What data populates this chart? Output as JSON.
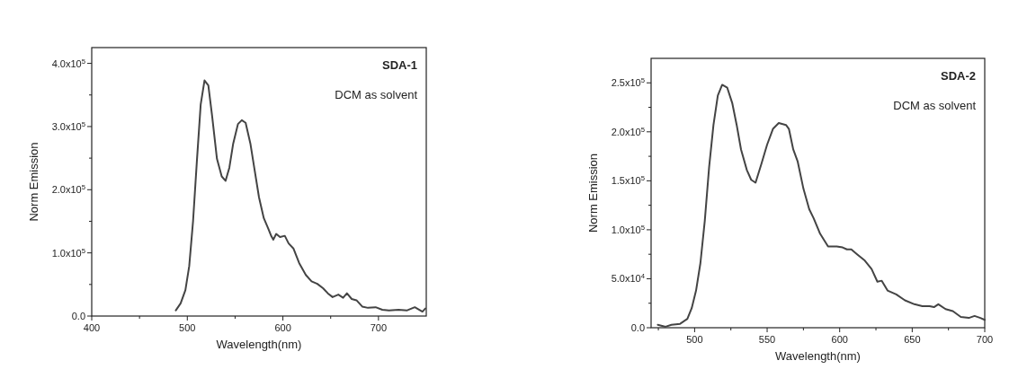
{
  "chart_data": [
    {
      "type": "line",
      "xlabel": "Wavelength(nm)",
      "ylabel": "Norm Emission",
      "annotations": [
        "SDA-1",
        "DCM as solvent"
      ],
      "xlim": [
        400,
        750
      ],
      "ylim": [
        0,
        425000
      ],
      "xticks": [
        400,
        {
          "value": 450,
          "label": null
        },
        500,
        {
          "value": 550,
          "label": null
        },
        600,
        {
          "value": 650,
          "label": null
        },
        700
      ],
      "yticks": [
        {
          "value": 0,
          "label": "0.0"
        },
        {
          "value": 50000,
          "label": null
        },
        {
          "value": 100000,
          "label": "1.0x10$^{5}$"
        },
        {
          "value": 150000,
          "label": null
        },
        {
          "value": 200000,
          "label": "2.0x10$^{5}$"
        },
        {
          "value": 250000,
          "label": null
        },
        {
          "value": 300000,
          "label": "3.0x10$^{5}$"
        },
        {
          "value": 350000,
          "label": null
        },
        {
          "value": 400000,
          "label": "4.0x10$^{5}$"
        }
      ],
      "series": [
        {
          "color": "#444444",
          "x": [
            488,
            493,
            498,
            502,
            506,
            510,
            514,
            518,
            522,
            526,
            531,
            536,
            540,
            544,
            548,
            553,
            557,
            561,
            566,
            570,
            575,
            580,
            584,
            588,
            590,
            593,
            597,
            602,
            606,
            611,
            617,
            624,
            630,
            636,
            642,
            647,
            652,
            658,
            663,
            667,
            672,
            677,
            683,
            689,
            697,
            704,
            711,
            721,
            730,
            738,
            746,
            749
          ],
          "values": [
            9000,
            20000,
            41000,
            79000,
            150000,
            245000,
            335000,
            373000,
            365000,
            316000,
            249000,
            221000,
            214000,
            235000,
            273000,
            304000,
            310000,
            306000,
            273000,
            235000,
            188000,
            155000,
            141000,
            126000,
            121000,
            130000,
            125000,
            127000,
            115000,
            107000,
            84000,
            65000,
            55000,
            51000,
            44000,
            36000,
            30000,
            34000,
            29000,
            36000,
            27000,
            25000,
            15000,
            13000,
            14000,
            10000,
            9000,
            10000,
            9000,
            14000,
            7000,
            12000
          ]
        }
      ]
    },
    {
      "type": "line",
      "xlabel": "Wavelength(nm)",
      "ylabel": "Norm Emission",
      "annotations": [
        "SDA-2",
        "DCM as solvent"
      ],
      "xlim": [
        470,
        700
      ],
      "ylim": [
        0,
        275000
      ],
      "xticks": [
        {
          "value": 475,
          "label": null
        },
        500,
        {
          "value": 525,
          "label": null
        },
        550,
        {
          "value": 575,
          "label": null
        },
        600,
        {
          "value": 625,
          "label": null
        },
        650,
        {
          "value": 675,
          "label": null
        },
        700
      ],
      "yticks": [
        {
          "value": 0,
          "label": "0.0"
        },
        {
          "value": 25000,
          "label": null
        },
        {
          "value": 50000,
          "label": "5.0x10$^{4}$"
        },
        {
          "value": 75000,
          "label": null
        },
        {
          "value": 100000,
          "label": "1.0x10$^{5}$"
        },
        {
          "value": 125000,
          "label": null
        },
        {
          "value": 150000,
          "label": "1.5x10$^{5}$"
        },
        {
          "value": 175000,
          "label": null
        },
        {
          "value": 200000,
          "label": "2.0x10$^{5}$"
        },
        {
          "value": 225000,
          "label": null
        },
        {
          "value": 250000,
          "label": "2.5x10$^{5}$"
        }
      ],
      "series": [
        {
          "color": "#444444",
          "x": [
            474.6,
            480,
            484,
            490,
            495,
            498,
            501,
            504,
            507,
            510,
            513,
            516,
            519,
            522.5,
            526,
            529,
            532,
            536,
            539,
            542,
            546,
            550,
            554,
            558,
            563,
            565,
            568,
            571,
            575,
            579,
            582,
            586.5,
            592,
            598,
            602,
            605,
            608,
            612,
            617,
            622,
            626,
            629,
            633,
            639,
            645,
            651.5,
            657,
            662,
            665,
            668,
            673,
            678,
            683.5,
            689,
            693,
            697,
            700
          ],
          "values": [
            3000,
            1000,
            3000,
            4000,
            9000,
            20000,
            38000,
            66000,
            109000,
            164000,
            207000,
            237000,
            248000,
            245000,
            229000,
            207000,
            182000,
            161000,
            151000,
            148000,
            167000,
            187000,
            203000,
            209000,
            207000,
            203000,
            182000,
            170000,
            142000,
            121000,
            112000,
            96000,
            83000,
            83000,
            82000,
            80000,
            80000,
            75000,
            69000,
            60000,
            47000,
            48000,
            38000,
            34000,
            28000,
            24000,
            22000,
            22000,
            21000,
            24000,
            19000,
            17000,
            11000,
            10000,
            12000,
            10000,
            8000
          ]
        }
      ]
    }
  ]
}
